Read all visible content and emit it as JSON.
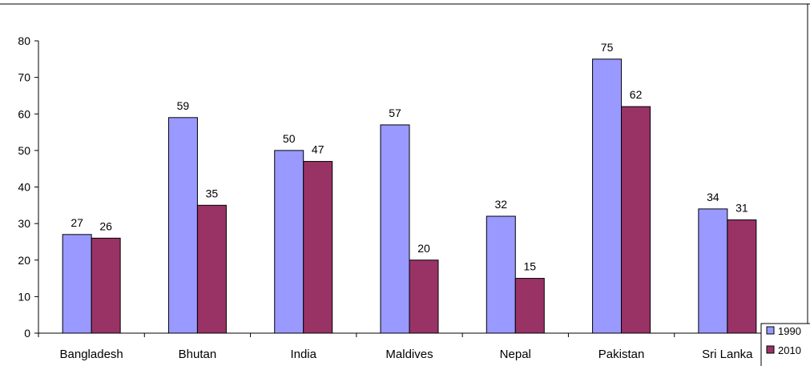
{
  "chart_data": {
    "type": "bar",
    "categories": [
      "Bangladesh",
      "Bhutan",
      "India",
      "Maldives",
      "Nepal",
      "Pakistan",
      "Sri Lanka"
    ],
    "series": [
      {
        "name": "1990",
        "values": [
          27,
          59,
          50,
          57,
          32,
          75,
          34
        ],
        "color": "#9999ff"
      },
      {
        "name": "2010",
        "values": [
          26,
          35,
          47,
          20,
          15,
          62,
          31
        ],
        "color": "#993366"
      }
    ],
    "data_labels": [
      [
        "27",
        "59",
        "50",
        "57",
        "32",
        "75",
        "34"
      ],
      [
        "26",
        "35",
        "47",
        "20",
        "15",
        "62",
        "31"
      ]
    ],
    "yticks": [
      0,
      10,
      20,
      30,
      40,
      50,
      60,
      70,
      80
    ],
    "ylim": [
      0,
      80
    ],
    "grid": false,
    "legend_position": "bottom-right"
  }
}
